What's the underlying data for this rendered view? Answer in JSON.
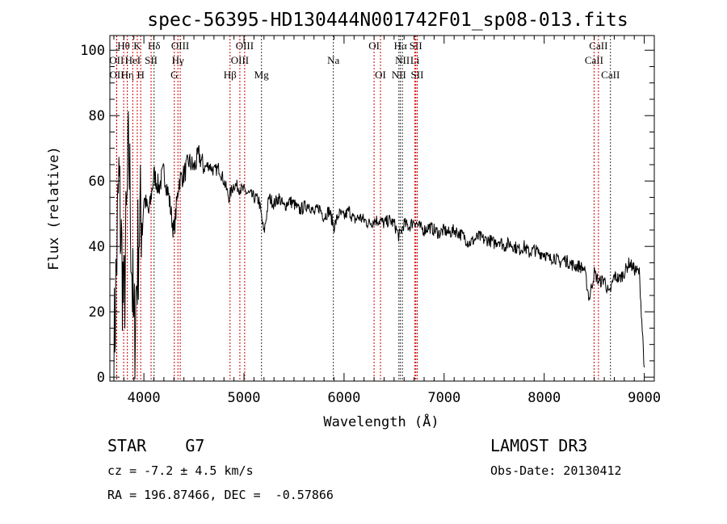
{
  "chart_data": {
    "type": "line",
    "title": "spec-56395-HD130444N001742F01_sp08-013.fits",
    "xlabel": "Wavelength (Å)",
    "ylabel": "Flux (relative)",
    "xlim": [
      3660,
      9100
    ],
    "ylim": [
      -1.2,
      104.5
    ],
    "xticks": [
      4000,
      5000,
      6000,
      7000,
      8000,
      9000
    ],
    "yticks": [
      0,
      20,
      40,
      60,
      80,
      100
    ],
    "grid": false,
    "series": [
      {
        "name": "spectrum",
        "color": "#000000",
        "x": [
          3700,
          3750,
          3800,
          3850,
          3900,
          3950,
          4000,
          4050,
          4100,
          4150,
          4200,
          4250,
          4300,
          4350,
          4400,
          4450,
          4500,
          4550,
          4600,
          4650,
          4700,
          4750,
          4800,
          4850,
          4900,
          4950,
          5000,
          5050,
          5100,
          5150,
          5200,
          5250,
          5300,
          5350,
          5400,
          5450,
          5500,
          5550,
          5600,
          5650,
          5700,
          5750,
          5800,
          5850,
          5900,
          5950,
          6000,
          6050,
          6100,
          6150,
          6200,
          6250,
          6300,
          6350,
          6400,
          6450,
          6500,
          6550,
          6600,
          6650,
          6700,
          6750,
          6800,
          6850,
          6900,
          6950,
          7000,
          7050,
          7100,
          7150,
          7200,
          7250,
          7300,
          7350,
          7400,
          7450,
          7500,
          7550,
          7600,
          7650,
          7700,
          7750,
          7800,
          7850,
          7900,
          7950,
          8000,
          8050,
          8100,
          8150,
          8200,
          8250,
          8300,
          8350,
          8400,
          8450,
          8500,
          8550,
          8600,
          8650,
          8700,
          8750,
          8800,
          8850,
          8900,
          8950,
          9000
        ],
        "y": [
          5,
          60,
          20,
          70,
          10,
          45,
          55,
          50,
          62,
          58,
          63,
          55,
          44,
          60,
          62,
          66,
          64,
          68,
          64,
          65,
          63,
          64,
          60,
          55,
          59,
          58,
          57,
          56,
          55,
          54,
          44,
          55,
          53,
          55,
          52,
          54,
          53,
          51,
          52,
          53,
          50,
          52,
          49,
          51,
          46,
          50,
          49,
          51,
          48,
          49,
          48,
          47,
          48,
          48,
          47,
          48,
          47,
          43,
          47,
          46,
          48,
          46,
          45,
          46,
          45,
          44,
          45,
          44,
          45,
          44,
          43,
          41,
          42,
          43,
          42,
          42,
          41,
          42,
          40,
          41,
          40,
          39,
          40,
          38,
          39,
          38,
          38,
          36,
          37,
          35,
          36,
          35,
          34,
          34,
          33,
          24,
          32,
          29,
          30,
          25,
          31,
          30,
          32,
          35,
          33,
          32,
          3
        ]
      }
    ],
    "line_markers": [
      {
        "label": "OII",
        "wave": 3727,
        "row": 1,
        "color": "#cc0000"
      },
      {
        "label": "OII",
        "wave": 3729,
        "row": 2,
        "color": "#cc0000"
      },
      {
        "label": "Hθ",
        "wave": 3798,
        "row": 0,
        "color": "#cc0000"
      },
      {
        "label": "Hη",
        "wave": 3835,
        "row": 2,
        "color": "#cc0000"
      },
      {
        "label": "HeI",
        "wave": 3889,
        "row": 1,
        "color": "#cc0000"
      },
      {
        "label": "K",
        "wave": 3934,
        "row": 0,
        "color": "#cc0000"
      },
      {
        "label": "H",
        "wave": 3968,
        "row": 2,
        "color": "#cc0000"
      },
      {
        "label": "SII",
        "wave": 4072,
        "row": 1,
        "color": "#cc0000"
      },
      {
        "label": "Hδ",
        "wave": 4102,
        "row": 0,
        "color": "#333333"
      },
      {
        "label": "G",
        "wave": 4304,
        "row": 2,
        "color": "#cc0000"
      },
      {
        "label": "Hγ",
        "wave": 4340,
        "row": 1,
        "color": "#cc0000"
      },
      {
        "label": "OIII",
        "wave": 4363,
        "row": 0,
        "color": "#cc0000"
      },
      {
        "label": "Hβ",
        "wave": 4861,
        "row": 2,
        "color": "#cc0000"
      },
      {
        "label": "OIII",
        "wave": 4959,
        "row": 1,
        "color": "#cc0000"
      },
      {
        "label": "OIII",
        "wave": 5007,
        "row": 0,
        "color": "#cc0000"
      },
      {
        "label": "Mg",
        "wave": 5175,
        "row": 2,
        "color": "#333333"
      },
      {
        "label": "Na",
        "wave": 5893,
        "row": 1,
        "color": "#333333"
      },
      {
        "label": "OI",
        "wave": 6300,
        "row": 0,
        "color": "#cc0000"
      },
      {
        "label": "OI",
        "wave": 6364,
        "row": 2,
        "color": "#cc0000"
      },
      {
        "label": "NII",
        "wave": 6548,
        "row": 2,
        "color": "#333333"
      },
      {
        "label": "Hα",
        "wave": 6563,
        "row": 0,
        "color": "#333333"
      },
      {
        "label": "NII",
        "wave": 6583,
        "row": 1,
        "color": "#333333"
      },
      {
        "label": "Li",
        "wave": 6708,
        "row": 1,
        "color": "#cc0000"
      },
      {
        "label": "SII",
        "wave": 6717,
        "row": 0,
        "color": "#cc0000"
      },
      {
        "label": "SII",
        "wave": 6731,
        "row": 2,
        "color": "#cc0000"
      },
      {
        "label": "CaII",
        "wave": 8498,
        "row": 1,
        "color": "#cc0000"
      },
      {
        "label": "CaII",
        "wave": 8542,
        "row": 0,
        "color": "#cc0000"
      },
      {
        "label": "CaII",
        "wave": 8662,
        "row": 2,
        "color": "#333333"
      }
    ]
  },
  "info": {
    "class": "STAR    G7",
    "cz": "cz = -7.2 ± 4.5 km/s",
    "radec": "RA = 196.87466, DEC =  -0.57866",
    "survey": "LAMOST DR3",
    "obsdate": "Obs-Date: 20130412"
  }
}
